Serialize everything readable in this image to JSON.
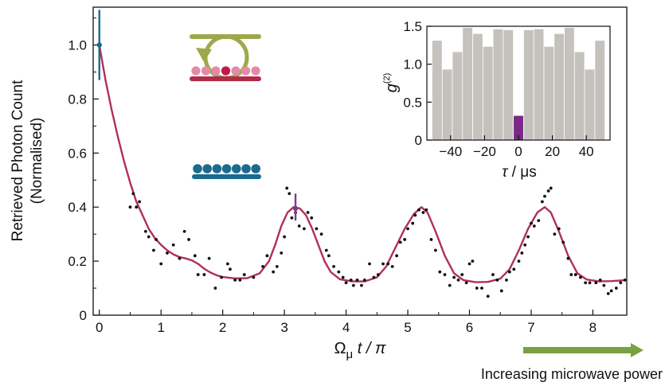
{
  "chart_data": [
    {
      "type": "scatter",
      "title": "",
      "xlabel": "Ωμ t / π",
      "xlabel_main": "Ω",
      "xlabel_sub": "μ",
      "xlabel_rest": " t / π",
      "ylabel_line1": "Retrieved Photon Count",
      "ylabel_line2": "(Normalised)",
      "xlim": [
        -0.1,
        8.55
      ],
      "ylim": [
        0,
        1.14
      ],
      "x_ticks": [
        0,
        1,
        2,
        3,
        4,
        5,
        6,
        7,
        8
      ],
      "x_tick_labels": [
        "0",
        "1",
        "2",
        "3",
        "4",
        "5",
        "6",
        "7",
        "8"
      ],
      "y_ticks": [
        0,
        0.2,
        0.4,
        0.6,
        0.8,
        1.0
      ],
      "y_tick_labels": [
        "0",
        "0.2",
        "0.4",
        "0.6",
        "0.8",
        "1.0"
      ],
      "grid": false,
      "colors": {
        "points": "#111111",
        "fit": "#b0305a",
        "error_bar_first": "#1a6b8e",
        "error_bar_peak": "#7a3b8f",
        "arrow": "#78a23e"
      },
      "points": [
        [
          0.5,
          0.4
        ],
        [
          0.55,
          0.45
        ],
        [
          0.6,
          0.4
        ],
        [
          0.65,
          0.42
        ],
        [
          0.75,
          0.31
        ],
        [
          0.8,
          0.29
        ],
        [
          0.88,
          0.24
        ],
        [
          0.92,
          0.28
        ],
        [
          1.0,
          0.19
        ],
        [
          1.1,
          0.23
        ],
        [
          1.2,
          0.26
        ],
        [
          1.3,
          0.21
        ],
        [
          1.38,
          0.31
        ],
        [
          1.45,
          0.28
        ],
        [
          1.55,
          0.22
        ],
        [
          1.6,
          0.15
        ],
        [
          1.7,
          0.15
        ],
        [
          1.78,
          0.21
        ],
        [
          1.88,
          0.1
        ],
        [
          1.98,
          0.14
        ],
        [
          2.08,
          0.19
        ],
        [
          2.12,
          0.17
        ],
        [
          2.2,
          0.13
        ],
        [
          2.28,
          0.13
        ],
        [
          2.35,
          0.15
        ],
        [
          2.5,
          0.14
        ],
        [
          2.65,
          0.18
        ],
        [
          2.72,
          0.22
        ],
        [
          2.82,
          0.16
        ],
        [
          2.88,
          0.18
        ],
        [
          2.95,
          0.23
        ],
        [
          3.0,
          0.29
        ],
        [
          3.04,
          0.47
        ],
        [
          3.08,
          0.45
        ],
        [
          3.12,
          0.36
        ],
        [
          3.18,
          0.38
        ],
        [
          3.24,
          0.33
        ],
        [
          3.32,
          0.32
        ],
        [
          3.38,
          0.38
        ],
        [
          3.44,
          0.36
        ],
        [
          3.52,
          0.32
        ],
        [
          3.6,
          0.3
        ],
        [
          3.68,
          0.24
        ],
        [
          3.72,
          0.22
        ],
        [
          3.8,
          0.18
        ],
        [
          3.88,
          0.16
        ],
        [
          3.95,
          0.14
        ],
        [
          4.0,
          0.12
        ],
        [
          4.08,
          0.13
        ],
        [
          4.12,
          0.11
        ],
        [
          4.18,
          0.13
        ],
        [
          4.25,
          0.11
        ],
        [
          4.3,
          0.13
        ],
        [
          4.38,
          0.19
        ],
        [
          4.45,
          0.14
        ],
        [
          4.52,
          0.15
        ],
        [
          4.6,
          0.19
        ],
        [
          4.68,
          0.19
        ],
        [
          4.75,
          0.18
        ],
        [
          4.82,
          0.22
        ],
        [
          4.88,
          0.27
        ],
        [
          4.95,
          0.28
        ],
        [
          5.0,
          0.32
        ],
        [
          5.08,
          0.34
        ],
        [
          5.12,
          0.37
        ],
        [
          5.18,
          0.39
        ],
        [
          5.25,
          0.38
        ],
        [
          5.3,
          0.39
        ],
        [
          5.38,
          0.28
        ],
        [
          5.45,
          0.24
        ],
        [
          5.52,
          0.16
        ],
        [
          5.6,
          0.15
        ],
        [
          5.68,
          0.11
        ],
        [
          5.75,
          0.14
        ],
        [
          5.82,
          0.13
        ],
        [
          5.88,
          0.15
        ],
        [
          5.95,
          0.12
        ],
        [
          6.0,
          0.19
        ],
        [
          6.05,
          0.2
        ],
        [
          6.12,
          0.1
        ],
        [
          6.2,
          0.1
        ],
        [
          6.3,
          0.07
        ],
        [
          6.38,
          0.15
        ],
        [
          6.45,
          0.13
        ],
        [
          6.52,
          0.09
        ],
        [
          6.6,
          0.13
        ],
        [
          6.65,
          0.16
        ],
        [
          6.72,
          0.17
        ],
        [
          6.8,
          0.2
        ],
        [
          6.85,
          0.23
        ],
        [
          6.9,
          0.26
        ],
        [
          6.95,
          0.29
        ],
        [
          7.0,
          0.34
        ],
        [
          7.05,
          0.33
        ],
        [
          7.12,
          0.35
        ],
        [
          7.18,
          0.42
        ],
        [
          7.22,
          0.44
        ],
        [
          7.28,
          0.46
        ],
        [
          7.32,
          0.47
        ],
        [
          7.38,
          0.3
        ],
        [
          7.45,
          0.32
        ],
        [
          7.52,
          0.27
        ],
        [
          7.6,
          0.21
        ],
        [
          7.65,
          0.15
        ],
        [
          7.72,
          0.15
        ],
        [
          7.8,
          0.14
        ],
        [
          7.88,
          0.12
        ],
        [
          7.95,
          0.12
        ],
        [
          8.05,
          0.12
        ],
        [
          8.12,
          0.13
        ],
        [
          8.18,
          0.11
        ],
        [
          8.25,
          0.08
        ],
        [
          8.3,
          0.09
        ],
        [
          8.38,
          0.1
        ],
        [
          8.45,
          0.12
        ],
        [
          8.52,
          0.13
        ]
      ],
      "error_bars": [
        {
          "x": 0.0,
          "y": 1.0,
          "low": 0.87,
          "high": 1.13,
          "color": "#1a6b8e"
        },
        {
          "x": 3.18,
          "y": 0.395,
          "low": 0.35,
          "high": 0.45,
          "color": "#7a3b8f"
        }
      ],
      "fit_curve": [
        [
          0.0,
          1.0
        ],
        [
          0.1,
          0.87
        ],
        [
          0.2,
          0.76
        ],
        [
          0.3,
          0.66
        ],
        [
          0.4,
          0.57
        ],
        [
          0.5,
          0.49
        ],
        [
          0.6,
          0.42
        ],
        [
          0.7,
          0.37
        ],
        [
          0.8,
          0.32
        ],
        [
          0.9,
          0.285
        ],
        [
          1.0,
          0.26
        ],
        [
          1.1,
          0.24
        ],
        [
          1.2,
          0.225
        ],
        [
          1.3,
          0.215
        ],
        [
          1.4,
          0.21
        ],
        [
          1.5,
          0.203
        ],
        [
          1.6,
          0.19
        ],
        [
          1.7,
          0.172
        ],
        [
          1.8,
          0.158
        ],
        [
          1.9,
          0.148
        ],
        [
          2.0,
          0.141
        ],
        [
          2.2,
          0.136
        ],
        [
          2.4,
          0.137
        ],
        [
          2.6,
          0.155
        ],
        [
          2.75,
          0.2
        ],
        [
          2.85,
          0.26
        ],
        [
          2.95,
          0.33
        ],
        [
          3.05,
          0.38
        ],
        [
          3.15,
          0.4
        ],
        [
          3.25,
          0.395
        ],
        [
          3.35,
          0.37
        ],
        [
          3.45,
          0.32
        ],
        [
          3.55,
          0.26
        ],
        [
          3.65,
          0.2
        ],
        [
          3.75,
          0.16
        ],
        [
          3.9,
          0.133
        ],
        [
          4.1,
          0.125
        ],
        [
          4.3,
          0.125
        ],
        [
          4.5,
          0.14
        ],
        [
          4.65,
          0.18
        ],
        [
          4.8,
          0.25
        ],
        [
          4.95,
          0.32
        ],
        [
          5.1,
          0.375
        ],
        [
          5.22,
          0.4
        ],
        [
          5.32,
          0.38
        ],
        [
          5.45,
          0.31
        ],
        [
          5.6,
          0.22
        ],
        [
          5.75,
          0.155
        ],
        [
          5.9,
          0.13
        ],
        [
          6.1,
          0.122
        ],
        [
          6.3,
          0.123
        ],
        [
          6.5,
          0.135
        ],
        [
          6.65,
          0.17
        ],
        [
          6.8,
          0.24
        ],
        [
          6.95,
          0.32
        ],
        [
          7.1,
          0.38
        ],
        [
          7.22,
          0.4
        ],
        [
          7.32,
          0.38
        ],
        [
          7.45,
          0.31
        ],
        [
          7.6,
          0.22
        ],
        [
          7.75,
          0.155
        ],
        [
          7.9,
          0.132
        ],
        [
          8.1,
          0.125
        ],
        [
          8.3,
          0.126
        ],
        [
          8.55,
          0.13
        ]
      ]
    },
    {
      "type": "bar",
      "title": "",
      "xlabel": "τ  / μs",
      "xlabel_sym": "τ",
      "xlabel_rest": "  / μs",
      "ylabel": "g(2)",
      "ylabel_main": "g",
      "ylabel_sup": "(2)",
      "xlim": [
        -54,
        54
      ],
      "ylim": [
        0,
        1.5
      ],
      "x_ticks": [
        -40,
        -20,
        0,
        20,
        40
      ],
      "x_tick_labels": [
        "−40",
        "−20",
        "0",
        "20",
        "40"
      ],
      "y_ticks": [
        0,
        0.5,
        1.0,
        1.5
      ],
      "y_tick_labels": [
        "0",
        "0.5",
        "1.0",
        "1.5"
      ],
      "bar_width": 5.6,
      "colors": {
        "bars": "#c5c2be",
        "highlight": "#7a2a86"
      },
      "x": [
        -48,
        -42,
        -36,
        -30,
        -24,
        -18,
        -12,
        -6,
        0,
        6,
        12,
        18,
        24,
        30,
        36,
        42,
        48
      ],
      "values": [
        1.31,
        0.93,
        1.16,
        1.48,
        1.4,
        1.23,
        1.46,
        1.45,
        0.32,
        1.45,
        1.46,
        1.23,
        1.4,
        1.48,
        1.16,
        0.93,
        1.31
      ],
      "highlight_index": 8
    }
  ],
  "annotation": {
    "arrow_label": "Increasing microwave power"
  },
  "illustration": {
    "cavity_color": "#9da84a",
    "red_line_color": "#b22a4a",
    "pink_atom_color": "#e38aa8",
    "excited_atom_color": "#c01848",
    "ground_atom_color": "#1a6b8e"
  }
}
